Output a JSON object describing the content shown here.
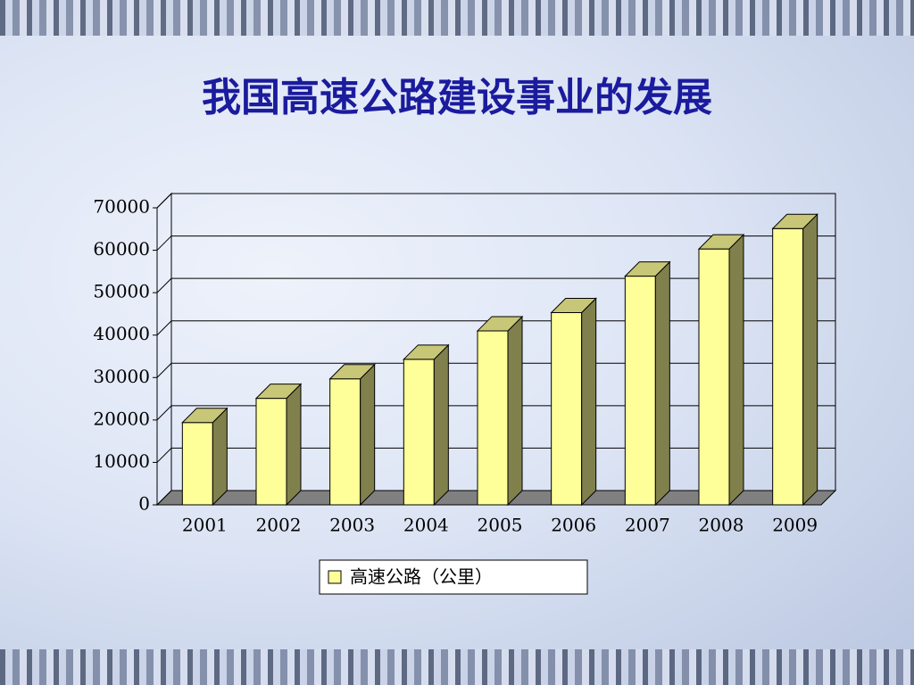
{
  "chart_data": {
    "type": "bar3d",
    "title": "我国高速公路建设事业的发展",
    "categories": [
      "2001",
      "2002",
      "2003",
      "2004",
      "2005",
      "2006",
      "2007",
      "2008",
      "2009"
    ],
    "series": [
      {
        "name": "高速公路（公里）",
        "color": "#ffff99",
        "values": [
          19400,
          25100,
          29700,
          34300,
          41000,
          45300,
          53900,
          60300,
          65100
        ]
      }
    ],
    "ylim": [
      0,
      70000
    ],
    "yticks": [
      0,
      10000,
      20000,
      30000,
      40000,
      50000,
      60000,
      70000
    ],
    "grid": true
  }
}
